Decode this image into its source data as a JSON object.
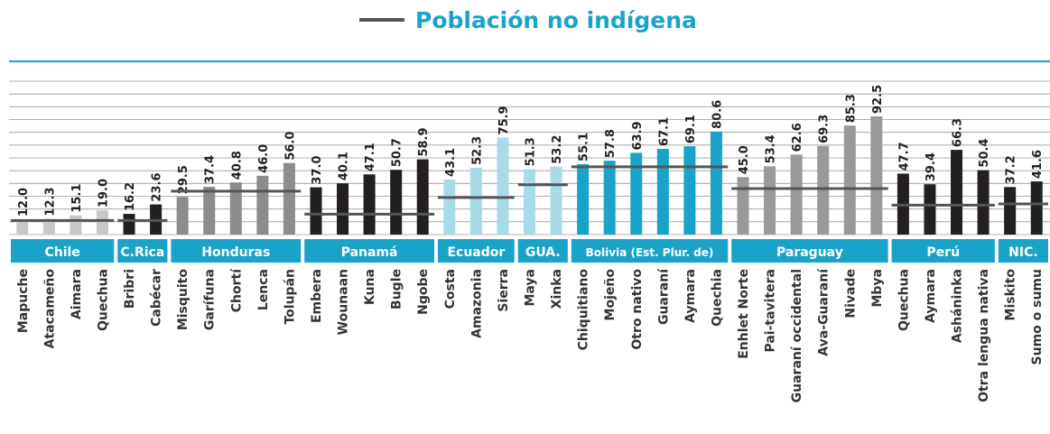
{
  "chart_data": {
    "type": "bar",
    "legend": {
      "label": "Población no indígena",
      "color": "#555555"
    },
    "ylim": [
      0,
      120
    ],
    "yticks": [
      0,
      10,
      20,
      30,
      40,
      50,
      60,
      70,
      80,
      90,
      100,
      110,
      120
    ],
    "grid": true,
    "band_color": "#1aa3c8",
    "groups": [
      {
        "name": "Chile",
        "color": "#c8c8c8",
        "reference": 11,
        "categories": [
          "Mapuche",
          "Atacameño",
          "Aimara",
          "Quechua"
        ],
        "values": [
          12.0,
          12.3,
          15.1,
          19.0
        ],
        "value_labels": [
          "12.0",
          "12.3",
          "15.1",
          "19.0"
        ]
      },
      {
        "name": "C.Rica",
        "color": "#231f20",
        "reference": 11,
        "categories": [
          "Bribri",
          "Cabécar"
        ],
        "values": [
          16.2,
          23.6
        ],
        "value_labels": [
          "16.2",
          "23.6"
        ]
      },
      {
        "name": "Honduras",
        "color": "#8c8c8c",
        "reference": 34,
        "categories": [
          "Misquito",
          "Garífuna",
          "Chortí",
          "Lenca",
          "Tolupán"
        ],
        "values": [
          29.5,
          37.4,
          40.8,
          46.0,
          56.0
        ],
        "value_labels": [
          "29.5",
          "37.4",
          "40.8",
          "46.0",
          "56.0"
        ]
      },
      {
        "name": "Panamá",
        "color": "#231f20",
        "reference": 16,
        "categories": [
          "Embera",
          "Wounaan",
          "Kuna",
          "Bugle",
          "Ngobe"
        ],
        "values": [
          37.0,
          40.1,
          47.1,
          50.7,
          58.9
        ],
        "value_labels": [
          "37.0",
          "40.1",
          "47.1",
          "50.7",
          "58.9"
        ]
      },
      {
        "name": "Ecuador",
        "color": "#a7dbe8",
        "reference": 29,
        "categories": [
          "Costa",
          "Amazonia",
          "Sierra"
        ],
        "values": [
          43.1,
          52.3,
          75.9
        ],
        "value_labels": [
          "43.1",
          "52.3",
          "75.9"
        ]
      },
      {
        "name": "GUA.",
        "color": "#a7dbe8",
        "reference": 39,
        "categories": [
          "Maya",
          "Xinka"
        ],
        "values": [
          51.3,
          53.2
        ],
        "value_labels": [
          "51.3",
          "53.2"
        ]
      },
      {
        "name": "Bolivia (Est. Plur. de)",
        "color": "#1aa3c8",
        "reference": 53,
        "categories": [
          "Chiquitiano",
          "Mojeño",
          "Otro nativo",
          "Guaraní",
          "Aymara",
          "Quechia"
        ],
        "values": [
          55.1,
          57.8,
          63.9,
          67.1,
          69.1,
          80.6
        ],
        "value_labels": [
          "55.1",
          "57.8",
          "63.9",
          "67.1",
          "69.1",
          "80.6"
        ]
      },
      {
        "name": "Paraguay",
        "color": "#999999",
        "reference": 36,
        "categories": [
          "Enhlet Norte",
          "Pai-tavitera",
          "Guaraní occidental",
          "Ava-Guaraní",
          "Nivade",
          "Mbya"
        ],
        "values": [
          45.0,
          53.4,
          62.6,
          69.3,
          85.3,
          92.5
        ],
        "value_labels": [
          "45.0",
          "53.4",
          "62.6",
          "69.3",
          "85.3",
          "92.5"
        ]
      },
      {
        "name": "Perú",
        "color": "#231f20",
        "reference": 23,
        "categories": [
          "Quechua",
          "Aymara",
          "Asháninka",
          "Otra lengua nativa"
        ],
        "values": [
          47.7,
          39.4,
          66.3,
          50.4
        ],
        "value_labels": [
          "47.7",
          "39.4",
          "66.3",
          "50.4"
        ]
      },
      {
        "name": "NIC.",
        "color": "#231f20",
        "reference": 24,
        "categories": [
          "Miskito",
          "Sumo o sumu"
        ],
        "values": [
          37.2,
          41.6
        ],
        "value_labels": [
          "37.2",
          "41.6"
        ]
      }
    ]
  }
}
